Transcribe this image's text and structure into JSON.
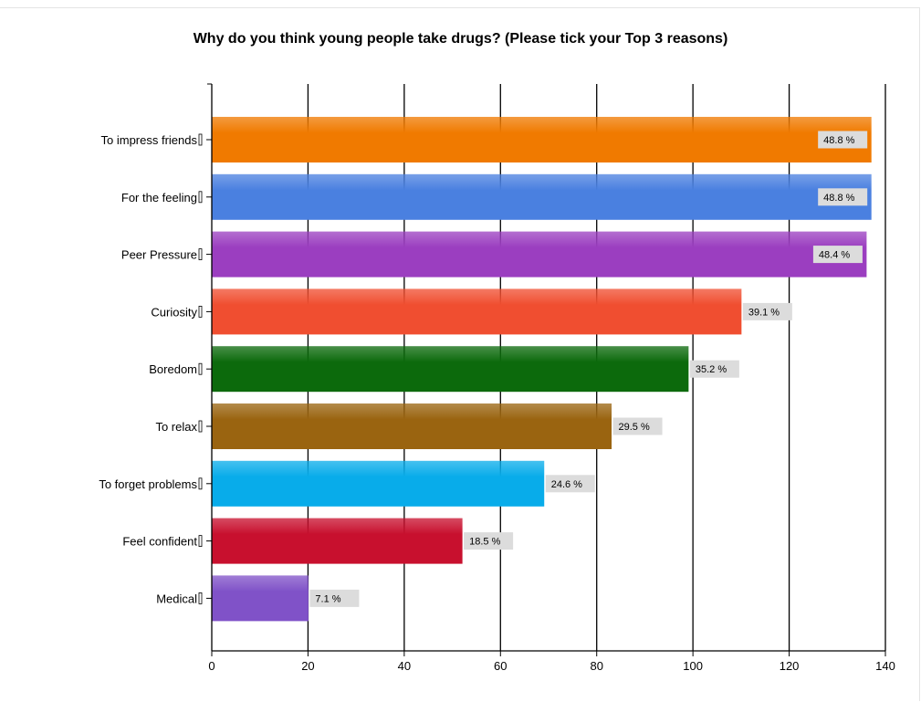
{
  "chart_data": {
    "type": "bar",
    "orientation": "horizontal",
    "title": "Why do you think young people take drugs? (Please tick your Top 3 reasons)",
    "xlabel": "",
    "ylabel": "",
    "xlim": [
      0,
      140
    ],
    "x_ticks": [
      "0",
      "20",
      "40",
      "60",
      "80",
      "100",
      "120",
      "140"
    ],
    "grid": "vertical",
    "categories": [
      "To impress friends",
      "For the feeling",
      "Peer Pressure",
      "Curiosity",
      "Boredom",
      "To relax",
      "To forget problems",
      "Feel confident",
      "Medical"
    ],
    "values": [
      137,
      137,
      136,
      110,
      99,
      83,
      69,
      52,
      20
    ],
    "data_labels": [
      "48.8 %",
      "48.8 %",
      "48.4 %",
      "39.1 %",
      "35.2 %",
      "29.5 %",
      "24.6 %",
      "18.5 %",
      "7.1 %"
    ],
    "colors": [
      "#f07a00",
      "#4a80e0",
      "#9b3ec0",
      "#f04e30",
      "#0c6a0c",
      "#9a6410",
      "#08acea",
      "#c8102e",
      "#8052c8"
    ]
  }
}
